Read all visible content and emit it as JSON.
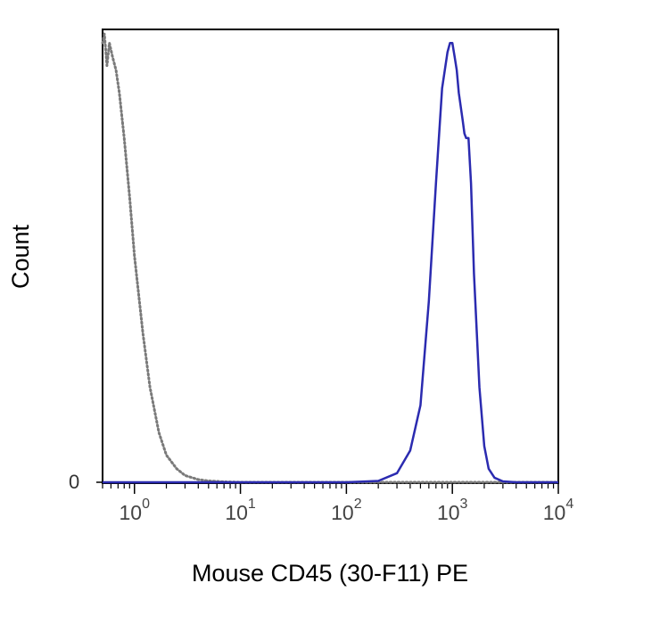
{
  "chart_data": {
    "type": "line",
    "title": "",
    "xlabel": "Mouse CD45 (30-F11) PE",
    "ylabel": "Count",
    "x_scale": "log",
    "xlim": [
      0.5,
      10000
    ],
    "ylim": [
      0,
      100
    ],
    "y_tick_label": "0",
    "x_ticks": [
      {
        "value": 1,
        "base": "10",
        "exp": "0"
      },
      {
        "value": 10,
        "base": "10",
        "exp": "1"
      },
      {
        "value": 100,
        "base": "10",
        "exp": "2"
      },
      {
        "value": 1000,
        "base": "10",
        "exp": "3"
      },
      {
        "value": 10000,
        "base": "10",
        "exp": "4"
      }
    ],
    "grid": false,
    "series": [
      {
        "color": "#7a7a7a",
        "line_style": "dotted",
        "x": [
          0.5,
          0.52,
          0.55,
          0.58,
          0.62,
          0.67,
          0.72,
          0.8,
          0.9,
          1.0,
          1.2,
          1.4,
          1.7,
          2.0,
          2.5,
          3.0,
          4.0,
          5.0,
          7.0,
          10.0,
          100.0,
          1000.0,
          10000.0
        ],
        "y": [
          97,
          99,
          92,
          97,
          94,
          91,
          86,
          76,
          63,
          50,
          33,
          21,
          11,
          6,
          3,
          1.5,
          0.6,
          0.3,
          0.1,
          0,
          0,
          0,
          0
        ]
      },
      {
        "color": "#2b2bb0",
        "line_style": "solid",
        "x": [
          0.5,
          100,
          200,
          300,
          400,
          500,
          600,
          700,
          800,
          900,
          950,
          1000,
          1050,
          1100,
          1150,
          1250,
          1300,
          1350,
          1420,
          1500,
          1600,
          1800,
          2000,
          2200,
          2500,
          3000,
          4000,
          10000
        ],
        "y": [
          0,
          0,
          0.3,
          2,
          7,
          17,
          40,
          66,
          87,
          95,
          97,
          97,
          94,
          91,
          86,
          80,
          77,
          76,
          76,
          66,
          46,
          21,
          8,
          3,
          1,
          0.2,
          0,
          0
        ]
      }
    ]
  }
}
